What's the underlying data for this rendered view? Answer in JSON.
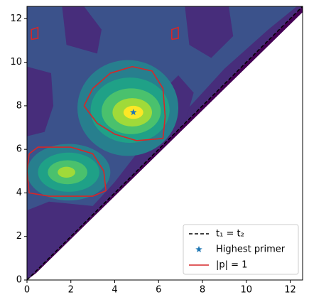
{
  "chart_data": {
    "type": "contour",
    "xlim": [
      0,
      12.566
    ],
    "ylim": [
      0,
      12.566
    ],
    "xticks": [
      0,
      2,
      4,
      6,
      8,
      10,
      12
    ],
    "yticks": [
      0,
      2,
      4,
      6,
      8,
      10,
      12
    ],
    "domain": {
      "color": "#3b528b",
      "x": [
        0,
        0,
        12.566
      ],
      "y": [
        0,
        12.566,
        12.566
      ]
    },
    "regions": [
      {
        "color": "#472d7b",
        "x": [
          0,
          0,
          1,
          3,
          4,
          5,
          7,
          9,
          11,
          12.3,
          12.566
        ],
        "y": [
          0,
          3.2,
          3.6,
          3.4,
          4.5,
          5.8,
          7.5,
          9.7,
          11.5,
          12.566,
          12.566
        ]
      },
      {
        "color": "#472d7b",
        "x": [
          0,
          0.8,
          1.2,
          1.1,
          0
        ],
        "y": [
          6.6,
          6.8,
          8,
          9.5,
          9.8
        ]
      },
      {
        "color": "#472d7b",
        "x": [
          1.6,
          2.6,
          3.4,
          3.2,
          1.8
        ],
        "y": [
          12.566,
          12.566,
          11.5,
          10.4,
          10.8
        ]
      },
      {
        "color": "#472d7b",
        "x": [
          7.2,
          9.2,
          9.4,
          8.4,
          7.4
        ],
        "y": [
          12.566,
          12.566,
          11.2,
          10.2,
          10.8
        ]
      },
      {
        "color": "#472d7b",
        "x": [
          6.3,
          7.2,
          7.6,
          6.9,
          6.3
        ],
        "y": [
          6.3,
          7.2,
          8.6,
          9.4,
          8.8
        ]
      },
      {
        "color": "#440154",
        "x": [
          0,
          0.4,
          12.566,
          12.566
        ],
        "y": [
          0,
          0.3,
          12.3,
          12.566
        ]
      }
    ],
    "blobs": [
      {
        "color": "#277f8e",
        "cx": 4.6,
        "cy": 7.9,
        "rx": 2.3,
        "ry": 2.2
      },
      {
        "color": "#1fa187",
        "cx": 4.7,
        "cy": 7.8,
        "rx": 1.8,
        "ry": 1.5
      },
      {
        "color": "#4ac16d",
        "cx": 4.75,
        "cy": 7.75,
        "rx": 1.35,
        "ry": 1.05
      },
      {
        "color": "#a0da39",
        "cx": 4.8,
        "cy": 7.7,
        "rx": 0.9,
        "ry": 0.65
      },
      {
        "color": "#fde725",
        "cx": 4.85,
        "cy": 7.7,
        "rx": 0.45,
        "ry": 0.3
      },
      {
        "color": "#277f8e",
        "cx": 1.9,
        "cy": 4.95,
        "rx": 1.9,
        "ry": 1.3
      },
      {
        "color": "#1fa187",
        "cx": 1.9,
        "cy": 4.95,
        "rx": 1.4,
        "ry": 0.9
      },
      {
        "color": "#4ac16d",
        "cx": 1.85,
        "cy": 4.95,
        "rx": 0.9,
        "ry": 0.55
      },
      {
        "color": "#a0da39",
        "cx": 1.8,
        "cy": 4.95,
        "rx": 0.4,
        "ry": 0.25
      }
    ],
    "diagonal": {
      "name": "t₁ = t₂",
      "color": "#000000",
      "x": [
        0,
        12.566
      ],
      "y": [
        0,
        12.566
      ]
    },
    "points": {
      "name": "Highest primer",
      "color": "#1f77b4",
      "x": [
        4.85
      ],
      "y": [
        7.7
      ]
    },
    "contours": {
      "name": "|p| = 1",
      "color": "#d62728",
      "pieces": [
        {
          "x": [
            2.6,
            3,
            3.8,
            4.8,
            5.7,
            6.2,
            6.3,
            6.2,
            5,
            4,
            3.2,
            2.6
          ],
          "y": [
            8,
            8.8,
            9.5,
            9.8,
            9.6,
            8.8,
            7.5,
            6.5,
            6.4,
            6.7,
            7.2,
            8
          ]
        },
        {
          "x": [
            0.1,
            0.5,
            2,
            3,
            3.5,
            3.6,
            3,
            1,
            0.1,
            0,
            0.1
          ],
          "y": [
            5.8,
            6.1,
            6.1,
            5.8,
            5,
            4.1,
            3.85,
            3.85,
            4,
            5,
            5.8
          ]
        },
        {
          "x": [
            0.2,
            0.5,
            0.5,
            0.2,
            0.2
          ],
          "y": [
            11.05,
            11.1,
            11.6,
            11.5,
            11.05
          ]
        },
        {
          "x": [
            6.6,
            6.9,
            6.9,
            6.6,
            6.6
          ],
          "y": [
            11.05,
            11.1,
            11.6,
            11.5,
            11.05
          ]
        }
      ]
    },
    "legend": "lower right"
  }
}
